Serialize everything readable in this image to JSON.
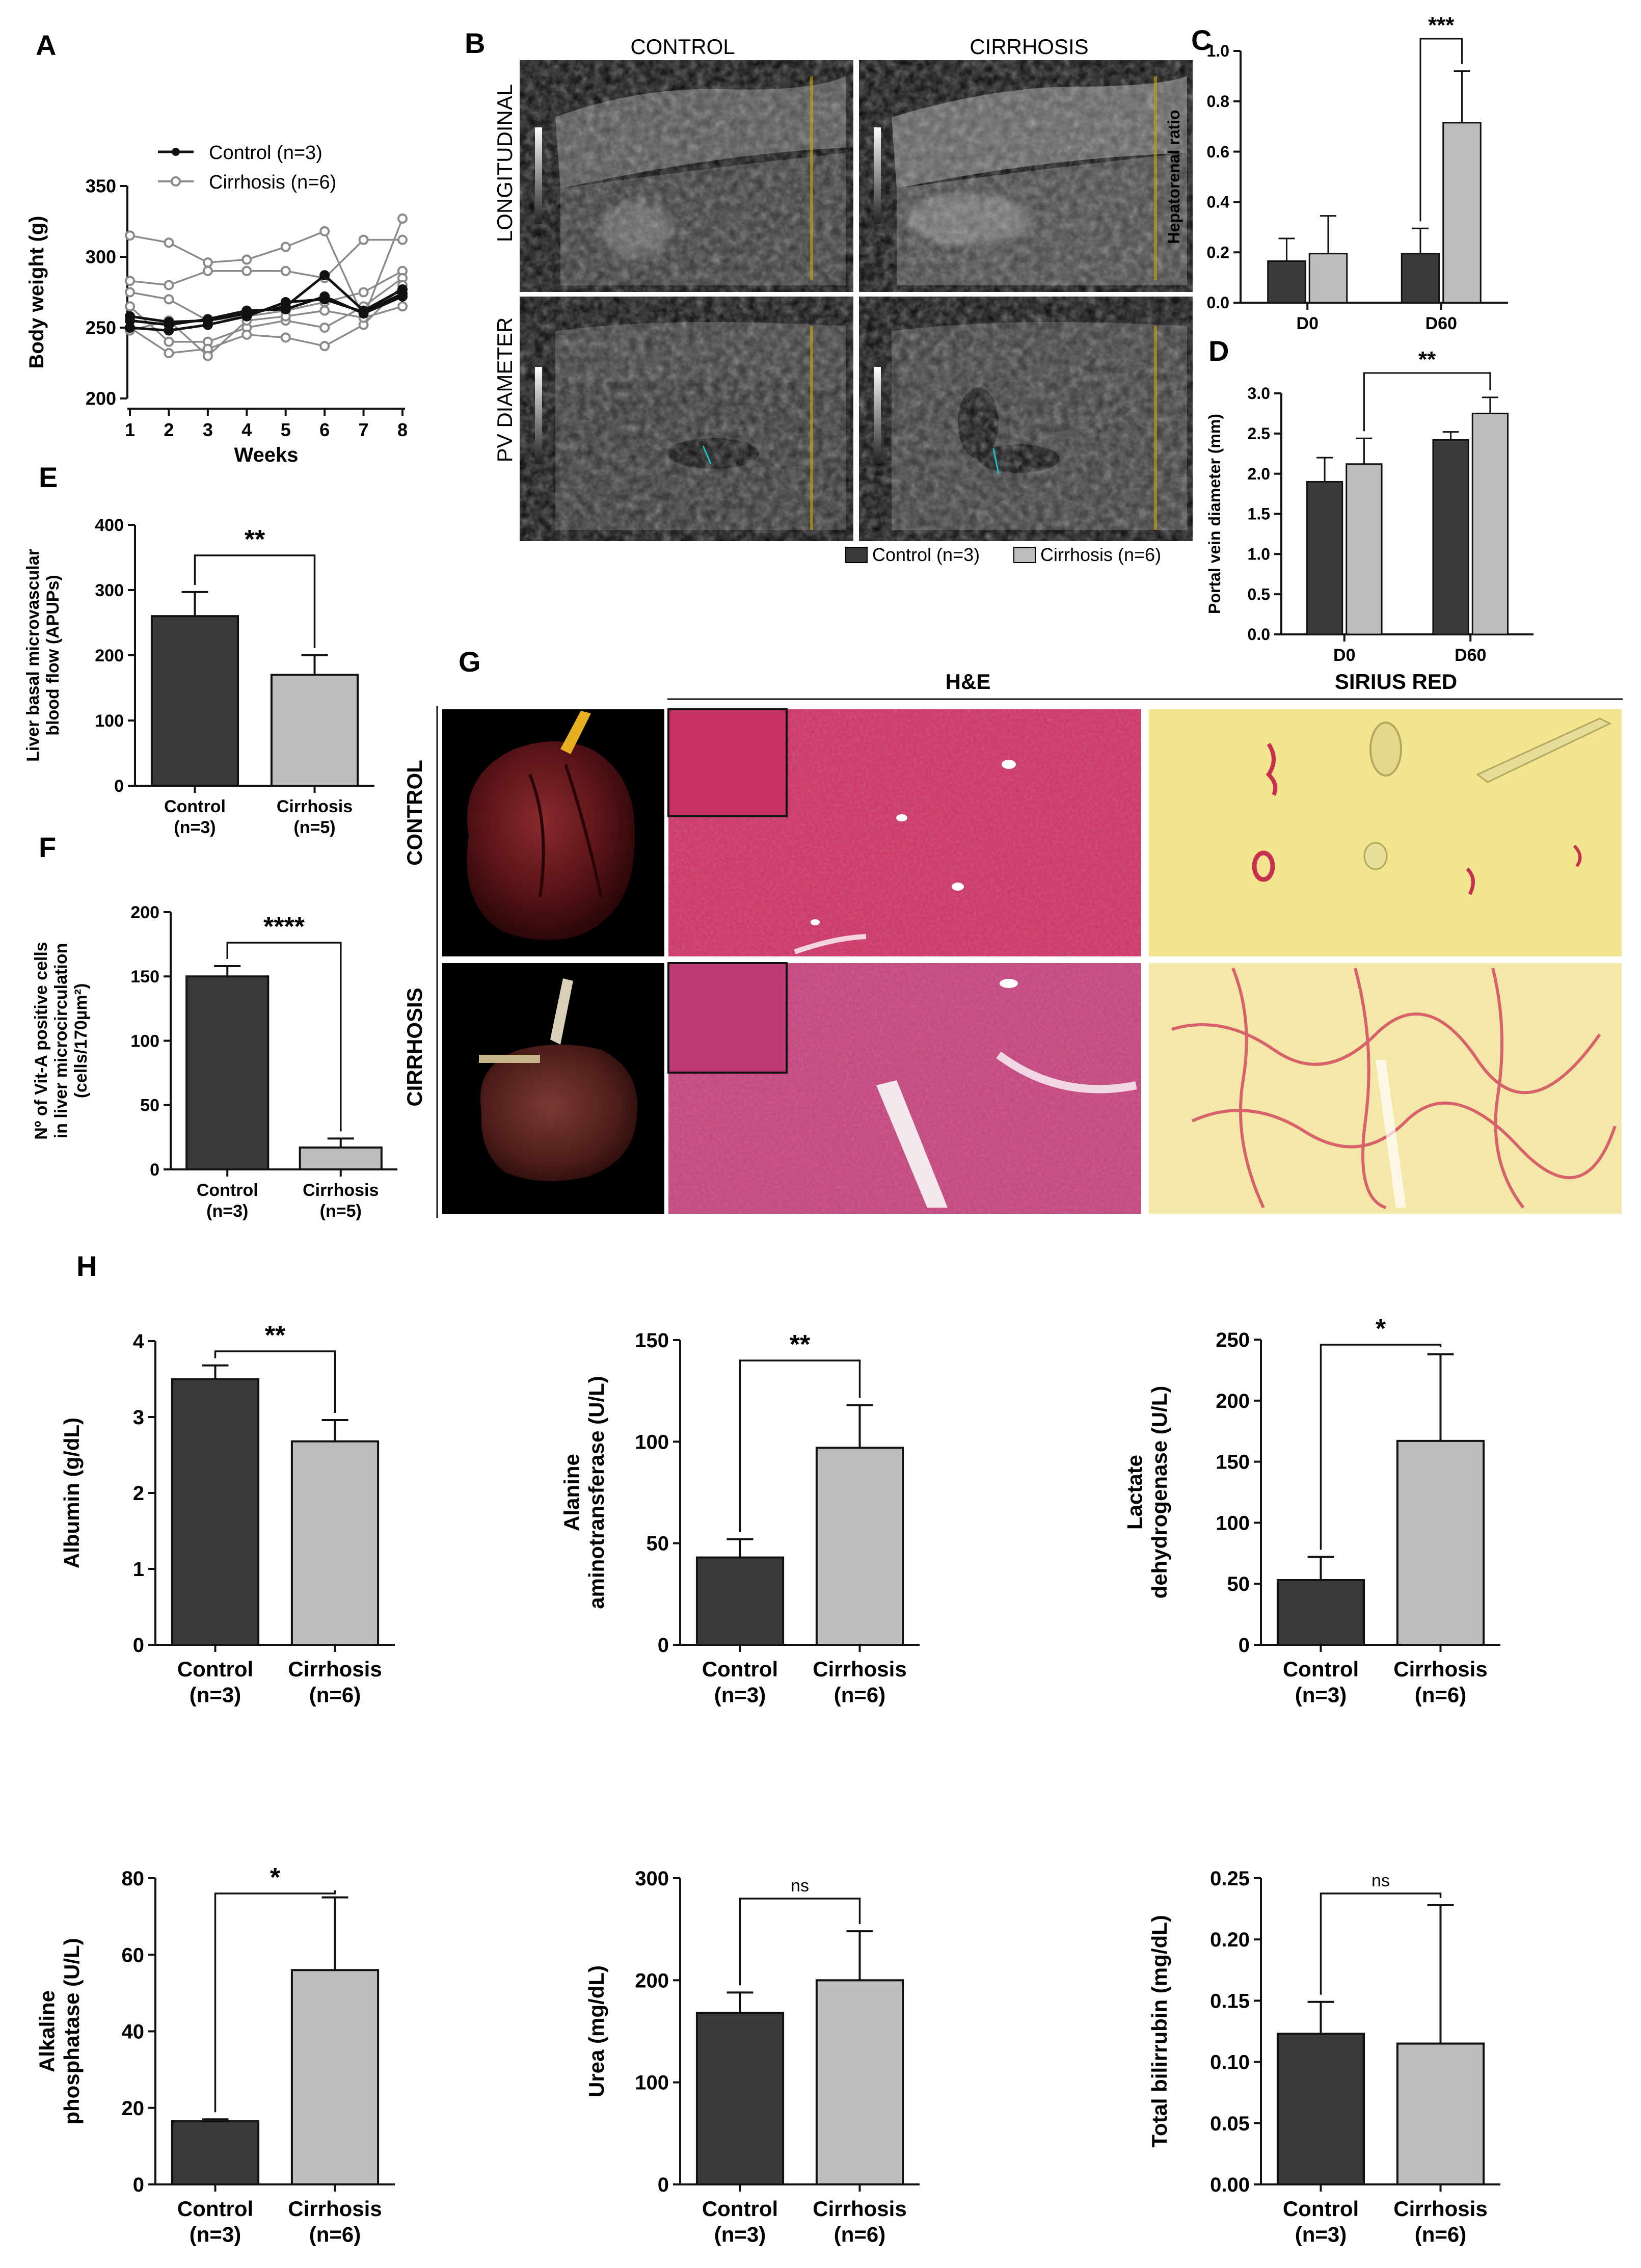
{
  "colors": {
    "control_bar": "#3a3a3a",
    "cirrhosis_bar": "#bdbdbd",
    "control_line": "#111111",
    "cirrhosis_line": "#8a8a8a",
    "he_stain": "#c8305f",
    "sirius_bg": "#f2e58e",
    "sirius_fiber": "#c5304e",
    "liver_tissue": "#5a1418"
  },
  "panel_letters": [
    "A",
    "B",
    "C",
    "D",
    "E",
    "F",
    "G",
    "H"
  ],
  "ultrasound": {
    "col_labels": [
      "CONTROL",
      "CIRRHOSIS"
    ],
    "row_labels": [
      "LONGITUDINAL",
      "PV DIAMETER"
    ],
    "legend": [
      "Control (n=3)",
      "Cirrhosis (n=6)"
    ]
  },
  "histology": {
    "col_labels": [
      "H&E",
      "SIRIUS RED"
    ],
    "row_labels": [
      "CONTROL",
      "CIRRHOSIS"
    ]
  },
  "chart_data": [
    {
      "id": "A",
      "type": "line",
      "x": [
        1,
        2,
        3,
        4,
        5,
        6,
        7,
        8
      ],
      "xlabel": "Weeks",
      "ylabel": "Body weight  (g)",
      "ylim": [
        200,
        350
      ],
      "yticks": [
        200,
        250,
        300,
        350
      ],
      "legend": [
        "Control (n=3)",
        "Cirrhosis (n=6)"
      ],
      "series": [
        {
          "group": "control",
          "values": [
            258,
            254,
            255,
            260,
            265,
            287,
            262,
            277
          ]
        },
        {
          "group": "control",
          "values": [
            250,
            248,
            252,
            258,
            268,
            270,
            261,
            274
          ]
        },
        {
          "group": "control",
          "values": [
            255,
            252,
            256,
            262,
            263,
            272,
            260,
            272
          ]
        },
        {
          "group": "cirrhosis",
          "values": [
            315,
            310,
            296,
            298,
            307,
            318,
            257,
            327
          ]
        },
        {
          "group": "cirrhosis",
          "values": [
            283,
            280,
            290,
            290,
            290,
            285,
            312,
            312
          ]
        },
        {
          "group": "cirrhosis",
          "values": [
            275,
            270,
            255,
            258,
            262,
            268,
            275,
            290
          ]
        },
        {
          "group": "cirrhosis",
          "values": [
            265,
            240,
            240,
            250,
            255,
            250,
            265,
            285
          ]
        },
        {
          "group": "cirrhosis",
          "values": [
            250,
            232,
            235,
            245,
            243,
            237,
            252,
            280
          ]
        },
        {
          "group": "cirrhosis",
          "values": [
            248,
            255,
            230,
            255,
            258,
            262,
            257,
            265
          ]
        }
      ]
    },
    {
      "id": "C",
      "type": "bar",
      "categories": [
        "D0",
        "D60"
      ],
      "ylabel": "Hepatorenal ratio",
      "ylim": [
        0,
        1.0
      ],
      "yticks": [
        "0.0",
        "0.2",
        "0.4",
        "0.6",
        "0.8",
        "1.0"
      ],
      "series": [
        {
          "group": "control",
          "values": [
            0.165,
            0.195
          ],
          "errors": [
            0.09,
            0.1
          ]
        },
        {
          "group": "cirrhosis",
          "values": [
            0.195,
            0.715
          ],
          "errors": [
            0.15,
            0.205
          ]
        }
      ],
      "annotations": [
        {
          "text": "***",
          "from": [
            1,
            0
          ],
          "to": [
            1,
            1
          ]
        }
      ]
    },
    {
      "id": "D",
      "type": "bar",
      "categories": [
        "D0",
        "D60"
      ],
      "ylabel": "Portal vein diameter (mm)",
      "ylim": [
        0,
        3.0
      ],
      "yticks": [
        "0.0",
        "0.5",
        "1.0",
        "1.5",
        "2.0",
        "2.5",
        "3.0"
      ],
      "series": [
        {
          "group": "control",
          "values": [
            1.9,
            2.42
          ],
          "errors": [
            0.3,
            0.1
          ]
        },
        {
          "group": "cirrhosis",
          "values": [
            2.12,
            2.75
          ],
          "errors": [
            0.32,
            0.2
          ]
        }
      ],
      "annotations": [
        {
          "text": "**",
          "from": [
            0,
            1
          ],
          "to": [
            1,
            1
          ]
        }
      ]
    },
    {
      "id": "E",
      "type": "bar",
      "categories": [
        "Control\n(n=3)",
        "Cirrhosis\n(n=5)"
      ],
      "ylabel": "Liver basal microvascular\nblood flow (APUPs)",
      "ylim": [
        0,
        400
      ],
      "yticks": [
        "0",
        "100",
        "200",
        "300",
        "400"
      ],
      "values": [
        260,
        170
      ],
      "errors": [
        37,
        30
      ],
      "annotation": "**"
    },
    {
      "id": "F",
      "type": "bar",
      "categories": [
        "Control\n(n=3)",
        "Cirrhosis\n(n=5)"
      ],
      "ylabel": "Nº of Vit-A positive cells\nin liver microcirculation\n(cells/170µm²)",
      "ylim": [
        0,
        200
      ],
      "yticks": [
        "0",
        "50",
        "100",
        "150",
        "200"
      ],
      "values": [
        150,
        17
      ],
      "errors": [
        8,
        7
      ],
      "annotation": "****"
    },
    {
      "id": "H1",
      "type": "bar",
      "categories": [
        "Control\n(n=3)",
        "Cirrhosis\n(n=6)"
      ],
      "ylabel": "Albumin (g/dL)",
      "ylim": [
        0,
        4
      ],
      "yticks": [
        "0",
        "1",
        "2",
        "3",
        "4"
      ],
      "values": [
        3.5,
        2.68
      ],
      "errors": [
        0.18,
        0.28
      ],
      "annotation": "**"
    },
    {
      "id": "H2",
      "type": "bar",
      "categories": [
        "Control\n(n=3)",
        "Cirrhosis\n(n=6)"
      ],
      "ylabel": "Alanine\naminotransferase (U/L)",
      "ylim": [
        0,
        150
      ],
      "yticks": [
        "0",
        "50",
        "100",
        "150"
      ],
      "values": [
        43,
        97
      ],
      "errors": [
        9,
        21
      ],
      "annotation": "**"
    },
    {
      "id": "H3",
      "type": "bar",
      "categories": [
        "Control\n(n=3)",
        "Cirrhosis\n(n=6)"
      ],
      "ylabel": "Lactate\ndehydrogenase (U/L)",
      "ylim": [
        0,
        250
      ],
      "yticks": [
        "0",
        "50",
        "100",
        "150",
        "200",
        "250"
      ],
      "values": [
        53,
        167
      ],
      "errors": [
        19,
        71
      ],
      "annotation": "*"
    },
    {
      "id": "H4",
      "type": "bar",
      "categories": [
        "Control\n(n=3)",
        "Cirrhosis\n(n=6)"
      ],
      "ylabel": "Alkaline\nphosphatase (U/L)",
      "ylim": [
        0,
        80
      ],
      "yticks": [
        "0",
        "20",
        "40",
        "60",
        "80"
      ],
      "values": [
        16.5,
        56
      ],
      "errors": [
        0.5,
        19
      ],
      "annotation": "*"
    },
    {
      "id": "H5",
      "type": "bar",
      "categories": [
        "Control\n(n=3)",
        "Cirrhosis\n(n=6)"
      ],
      "ylabel": "Urea (mg/dL)",
      "ylim": [
        0,
        300
      ],
      "yticks": [
        "0",
        "100",
        "200",
        "300"
      ],
      "values": [
        168,
        200
      ],
      "errors": [
        20,
        48
      ],
      "annotation": "ns"
    },
    {
      "id": "H6",
      "type": "bar",
      "categories": [
        "Control\n(n=3)",
        "Cirrhosis\n(n=6)"
      ],
      "ylabel": "Total bilirrubin (mg/dL)",
      "ylim": [
        0,
        0.25
      ],
      "yticks": [
        "0.00",
        "0.05",
        "0.10",
        "0.15",
        "0.20",
        "0.25"
      ],
      "values": [
        0.123,
        0.115
      ],
      "errors": [
        0.026,
        0.113
      ],
      "annotation": "ns"
    }
  ]
}
